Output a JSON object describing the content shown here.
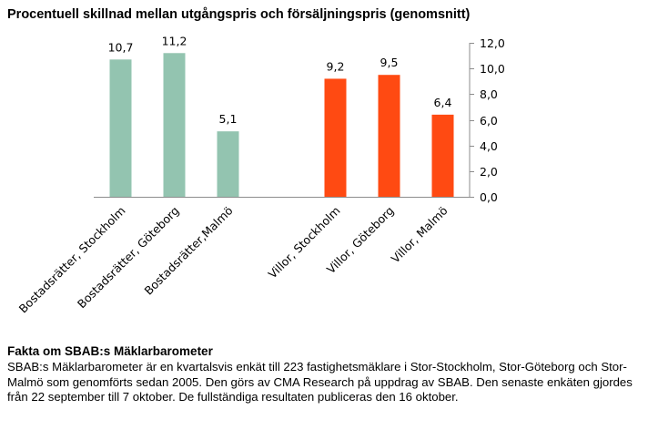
{
  "chart_data": {
    "type": "bar",
    "title": "Procentuell skillnad mellan utgångspris och försäljningspris (genomsnitt)",
    "categories": [
      "Bostadsrätter, Stockholm",
      "Bostadsrätter, Göteborg",
      "Bostadsrätter,Malmö",
      "",
      "Villor, Stockholm",
      "Villor, Göteborg",
      "Villor, Malmö"
    ],
    "values": [
      10.7,
      11.2,
      5.1,
      null,
      9.2,
      9.5,
      6.4
    ],
    "value_labels": [
      "10,7",
      "11,2",
      "5,1",
      "",
      "9,2",
      "9,5",
      "6,4"
    ],
    "colors": [
      "#93c4b0",
      "#93c4b0",
      "#93c4b0",
      "#ffffff",
      "#ff4a12",
      "#ff4a12",
      "#ff4a12"
    ],
    "ylim": [
      0,
      12
    ],
    "yticks": [
      "0,0",
      "2,0",
      "4,0",
      "6,0",
      "8,0",
      "10,0",
      "12,0"
    ],
    "y_axis_side": "right",
    "grid": false,
    "xlabel": "",
    "ylabel": ""
  },
  "facts": {
    "heading": "Fakta om SBAB:s Mäklarbarometer",
    "body": "SBAB:s Mäklarbarometer är en kvartalsvis enkät till 223 fastighetsmäklare i Stor-Stockholm, Stor-Göteborg och Stor-Malmö som genomförts sedan 2005. Den görs av CMA Research på uppdrag av SBAB. Den senaste enkäten gjordes från 22 september till 7 oktober. De fullständiga resultaten publiceras den 16 oktober."
  }
}
